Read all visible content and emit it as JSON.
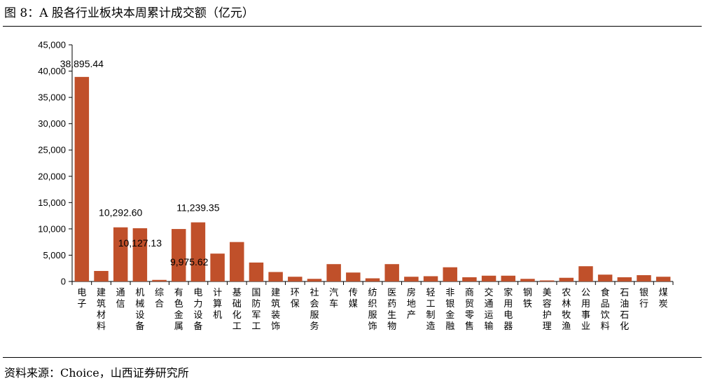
{
  "figure": {
    "title": "图 8：A 股各行业板块本周累计成交额（亿元）",
    "source": "资料来源：Choice，山西证券研究所"
  },
  "chart_data": {
    "type": "bar",
    "categories": [
      "电子",
      "建筑材料",
      "通信",
      "机械设备",
      "综合",
      "有色金属",
      "电力设备",
      "计算机",
      "基础化工",
      "国防军工",
      "建筑装饰",
      "环保",
      "社会服务",
      "汽车",
      "传媒",
      "纺织服饰",
      "医药生物",
      "房地产",
      "轻工制造",
      "非银金融",
      "商贸零售",
      "交通运输",
      "家用电器",
      "钢铁",
      "美容护理",
      "农林牧渔",
      "公用事业",
      "食品饮料",
      "石油石化",
      "银行",
      "煤炭"
    ],
    "values": [
      38895.44,
      2000,
      10292.6,
      10127.13,
      300,
      9975.62,
      11239.35,
      5300,
      7500,
      3600,
      1800,
      900,
      500,
      3300,
      1700,
      600,
      3300,
      900,
      1000,
      2700,
      800,
      1100,
      1100,
      500,
      200,
      700,
      2900,
      1300,
      800,
      1200,
      900
    ],
    "data_labels": [
      {
        "category": "电子",
        "text": "38,895.44"
      },
      {
        "category": "通信",
        "text": "10,292.60"
      },
      {
        "category": "机械设备",
        "text": "10,127.13"
      },
      {
        "category": "有色金属",
        "text": "9,975.62"
      },
      {
        "category": "电力设备",
        "text": "11,239.35"
      }
    ],
    "yticks": [
      "0",
      "5,000",
      "10,000",
      "15,000",
      "20,000",
      "25,000",
      "30,000",
      "35,000",
      "40,000",
      "45,000"
    ],
    "ylim": [
      0,
      45000
    ],
    "ylabel": "",
    "xlabel": "",
    "bar_color": "#C0502A",
    "grid": false,
    "legend": "none"
  }
}
